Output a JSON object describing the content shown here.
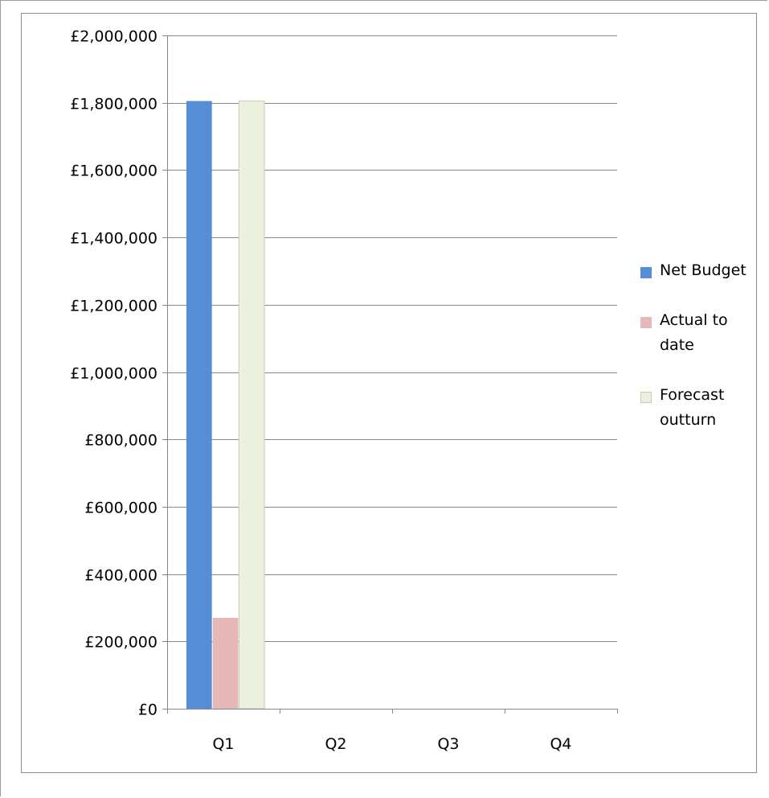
{
  "chart_data": {
    "type": "bar",
    "title": "",
    "xlabel": "",
    "ylabel": "",
    "categories": [
      "Q1",
      "Q2",
      "Q3",
      "Q4"
    ],
    "series": [
      {
        "name": "Net Budget",
        "color": "#558ed5",
        "values": [
          1805000,
          0,
          0,
          0
        ]
      },
      {
        "name": "Actual to date",
        "color": "#e6b9b8",
        "values": [
          270000,
          0,
          0,
          0
        ]
      },
      {
        "name": "Forecast outturn",
        "color": "#ebf1de",
        "values": [
          1805000,
          0,
          0,
          0
        ]
      }
    ],
    "ylim": [
      0,
      2000000
    ],
    "y_ticks": [
      0,
      200000,
      400000,
      600000,
      800000,
      1000000,
      1200000,
      1400000,
      1600000,
      1800000,
      2000000
    ],
    "y_tick_labels": [
      "£0",
      "£200,000",
      "£400,000",
      "£600,000",
      "£800,000",
      "£1,000,000",
      "£1,200,000",
      "£1,400,000",
      "£1,600,000",
      "£1,800,000",
      "£2,000,000"
    ],
    "grid": true,
    "legend_position": "right"
  }
}
